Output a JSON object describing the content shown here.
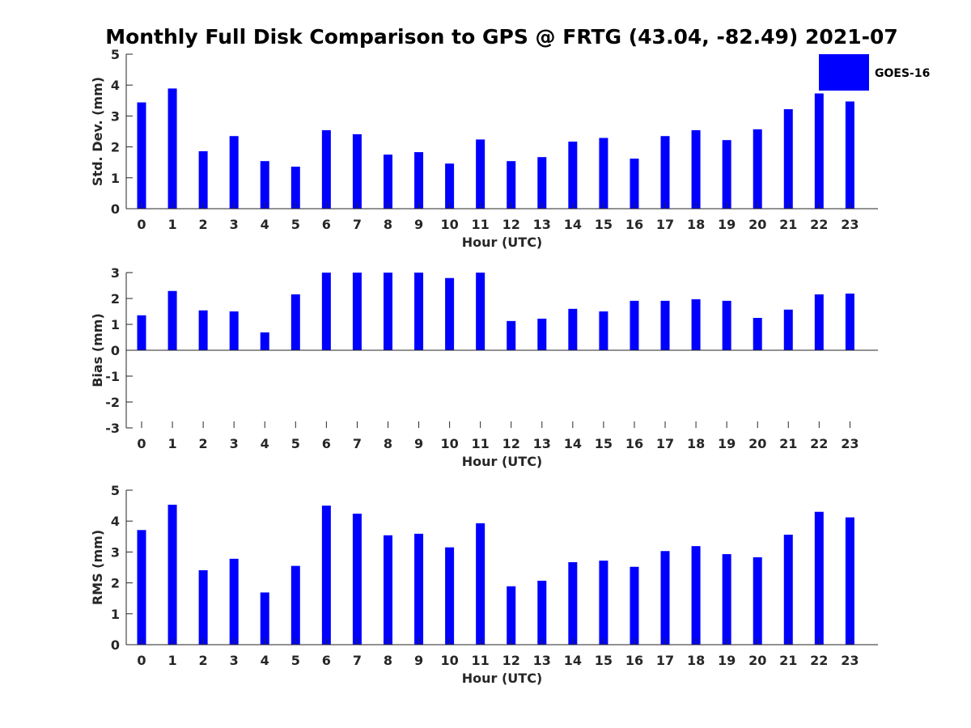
{
  "figure": {
    "title": "Monthly Full Disk Comparison to GPS @ FRTG (43.04, -82.49) 2021-07"
  },
  "legend": {
    "label": "GOES-16",
    "color": "#0000ff",
    "placement": "top-right"
  },
  "chart_data": [
    {
      "type": "bar",
      "xlabel": "Hour (UTC)",
      "ylabel": "Std. Dev. (mm)",
      "ylim": [
        0,
        5
      ],
      "yticks": [
        "0",
        "1",
        "2",
        "3",
        "4",
        "5"
      ],
      "categories": [
        "0",
        "1",
        "2",
        "3",
        "4",
        "5",
        "6",
        "7",
        "8",
        "9",
        "10",
        "11",
        "12",
        "13",
        "14",
        "15",
        "16",
        "17",
        "18",
        "19",
        "20",
        "21",
        "22",
        "23"
      ],
      "series": [
        {
          "name": "GOES-16",
          "color": "#0000ff",
          "values": [
            3.44,
            3.89,
            1.86,
            2.35,
            1.54,
            1.36,
            2.54,
            2.41,
            1.75,
            1.83,
            1.46,
            2.24,
            1.54,
            1.67,
            2.17,
            2.29,
            1.62,
            2.35,
            2.54,
            2.22,
            2.57,
            3.22,
            3.73,
            3.47
          ]
        }
      ]
    },
    {
      "type": "bar",
      "xlabel": "Hour (UTC)",
      "ylabel": "Bias (mm)",
      "ylim": [
        -3,
        3
      ],
      "yticks": [
        "-3",
        "-2",
        "-1",
        "0",
        "1",
        "2",
        "3"
      ],
      "categories": [
        "0",
        "1",
        "2",
        "3",
        "4",
        "5",
        "6",
        "7",
        "8",
        "9",
        "10",
        "11",
        "12",
        "13",
        "14",
        "15",
        "16",
        "17",
        "18",
        "19",
        "20",
        "21",
        "22",
        "23"
      ],
      "series": [
        {
          "name": "GOES-16",
          "color": "#0000ff",
          "values": [
            1.35,
            2.29,
            1.54,
            1.5,
            0.69,
            2.16,
            3.0,
            3.0,
            3.0,
            3.0,
            2.79,
            3.0,
            1.13,
            1.22,
            1.6,
            1.5,
            1.91,
            1.91,
            1.97,
            1.91,
            1.25,
            1.57,
            2.16,
            2.19
          ]
        }
      ]
    },
    {
      "type": "bar",
      "xlabel": "Hour (UTC)",
      "ylabel": "RMS (mm)",
      "ylim": [
        0,
        5
      ],
      "yticks": [
        "0",
        "1",
        "2",
        "3",
        "4",
        "5"
      ],
      "categories": [
        "0",
        "1",
        "2",
        "3",
        "4",
        "5",
        "6",
        "7",
        "8",
        "9",
        "10",
        "11",
        "12",
        "13",
        "14",
        "15",
        "16",
        "17",
        "18",
        "19",
        "20",
        "21",
        "22",
        "23"
      ],
      "series": [
        {
          "name": "GOES-16",
          "color": "#0000ff",
          "values": [
            3.71,
            4.53,
            2.41,
            2.78,
            1.69,
            2.55,
            4.5,
            4.24,
            3.54,
            3.59,
            3.15,
            3.93,
            1.89,
            2.07,
            2.67,
            2.72,
            2.52,
            3.03,
            3.19,
            2.93,
            2.83,
            3.56,
            4.3,
            4.12
          ]
        }
      ]
    }
  ]
}
